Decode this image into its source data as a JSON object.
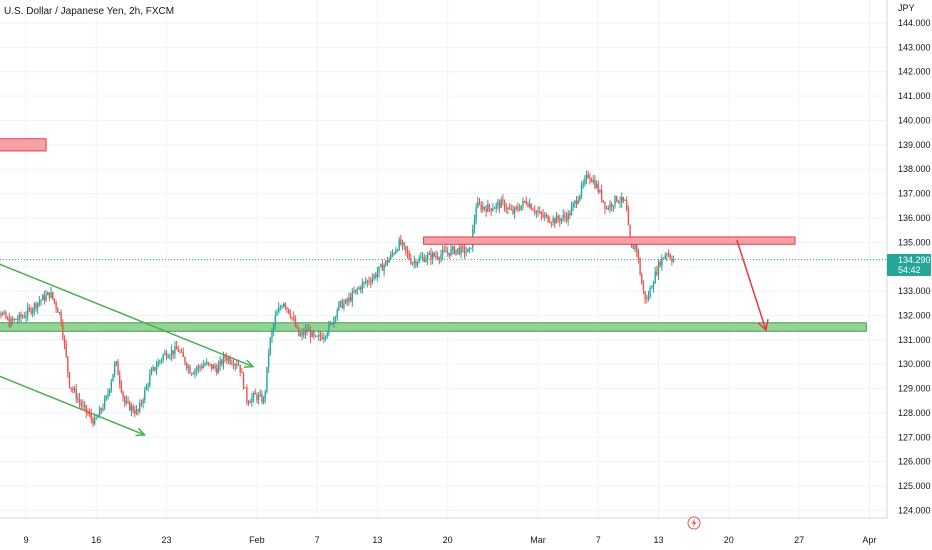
{
  "chart_data": {
    "type": "candlestick",
    "title": "U.S. Dollar / Japanese Yen, 2h, FXCM",
    "currency_label": "JPY",
    "ylim": [
      123.4,
      144.6
    ],
    "y_ticks": [
      "144.000",
      "143.000",
      "142.000",
      "141.000",
      "140.000",
      "139.000",
      "138.000",
      "137.000",
      "136.000",
      "135.000",
      "134.000",
      "133.000",
      "132.000",
      "131.000",
      "130.000",
      "129.000",
      "128.000",
      "127.000",
      "126.000",
      "125.000",
      "124.000"
    ],
    "x_ticks": [
      "9",
      "16",
      "23",
      "Feb",
      "7",
      "13",
      "20",
      "Mar",
      "7",
      "13",
      "20",
      "27",
      "Apr"
    ],
    "last_price": "134.290",
    "countdown": "54:42",
    "colors": {
      "up": "#26a69a",
      "down": "#ef5350",
      "resistance_fill": "#f7a1a6",
      "resistance_stroke": "#e03c48",
      "support_fill": "#93d396",
      "support_stroke": "#43a047",
      "trend_line": "#4caf50",
      "arrow_red": "#e53945",
      "price_label_bg": "#26a69a"
    },
    "price_path": [
      {
        "day": 5.0,
        "price": 132.7
      },
      {
        "day": 5.8,
        "price": 134.6
      },
      {
        "day": 6.5,
        "price": 132.2
      },
      {
        "day": 7.5,
        "price": 131.7
      },
      {
        "day": 9.0,
        "price": 132.0
      },
      {
        "day": 10.5,
        "price": 132.6
      },
      {
        "day": 11.6,
        "price": 132.9
      },
      {
        "day": 12.6,
        "price": 132.0
      },
      {
        "day": 13.5,
        "price": 129.2
      },
      {
        "day": 14.7,
        "price": 128.3
      },
      {
        "day": 16.0,
        "price": 127.6
      },
      {
        "day": 17.2,
        "price": 128.6
      },
      {
        "day": 18.1,
        "price": 130.1
      },
      {
        "day": 19.0,
        "price": 128.4
      },
      {
        "day": 20.3,
        "price": 128.0
      },
      {
        "day": 21.6,
        "price": 129.6
      },
      {
        "day": 22.9,
        "price": 130.4
      },
      {
        "day": 24.3,
        "price": 130.6
      },
      {
        "day": 25.6,
        "price": 129.7
      },
      {
        "day": 27.0,
        "price": 130.0
      },
      {
        "day": 28.2,
        "price": 129.8
      },
      {
        "day": 29.0,
        "price": 130.3
      },
      {
        "day": 30.4,
        "price": 130.0
      },
      {
        "day": 31.2,
        "price": 128.5
      },
      {
        "day": 32.0,
        "price": 128.7
      },
      {
        "day": 32.9,
        "price": 128.5
      },
      {
        "day": 33.4,
        "price": 130.8
      },
      {
        "day": 34.0,
        "price": 131.9
      },
      {
        "day": 34.8,
        "price": 132.6
      },
      {
        "day": 35.6,
        "price": 132.0
      },
      {
        "day": 36.4,
        "price": 131.1
      },
      {
        "day": 37.2,
        "price": 131.4
      },
      {
        "day": 38.0,
        "price": 131.0
      },
      {
        "day": 38.8,
        "price": 131.2
      },
      {
        "day": 39.5,
        "price": 131.6
      },
      {
        "day": 40.3,
        "price": 132.4
      },
      {
        "day": 41.0,
        "price": 132.5
      },
      {
        "day": 42.5,
        "price": 133.2
      },
      {
        "day": 43.8,
        "price": 133.6
      },
      {
        "day": 45.3,
        "price": 134.3
      },
      {
        "day": 46.4,
        "price": 135.0
      },
      {
        "day": 47.6,
        "price": 134.2
      },
      {
        "day": 49.1,
        "price": 134.4
      },
      {
        "day": 50.5,
        "price": 134.5
      },
      {
        "day": 52.0,
        "price": 134.7
      },
      {
        "day": 53.4,
        "price": 134.6
      },
      {
        "day": 54.0,
        "price": 136.5
      },
      {
        "day": 55.3,
        "price": 136.4
      },
      {
        "day": 56.6,
        "price": 136.6
      },
      {
        "day": 57.6,
        "price": 136.2
      },
      {
        "day": 59.0,
        "price": 136.7
      },
      {
        "day": 60.4,
        "price": 136.1
      },
      {
        "day": 61.8,
        "price": 135.9
      },
      {
        "day": 63.2,
        "price": 136.1
      },
      {
        "day": 64.3,
        "price": 137.0
      },
      {
        "day": 65.2,
        "price": 137.8
      },
      {
        "day": 66.0,
        "price": 137.3
      },
      {
        "day": 67.0,
        "price": 136.4
      },
      {
        "day": 68.0,
        "price": 136.8
      },
      {
        "day": 68.9,
        "price": 136.6
      },
      {
        "day": 69.4,
        "price": 134.6
      },
      {
        "day": 69.9,
        "price": 135.0
      },
      {
        "day": 70.6,
        "price": 133.0
      },
      {
        "day": 71.0,
        "price": 132.6
      },
      {
        "day": 71.6,
        "price": 133.4
      },
      {
        "day": 72.3,
        "price": 134.2
      },
      {
        "day": 73.0,
        "price": 134.6
      },
      {
        "day": 73.6,
        "price": 134.3
      }
    ],
    "levels": {
      "resistance_top_left": {
        "day_start": -1.0,
        "day_end": 11.0,
        "price_low": 138.75,
        "price_high": 139.25
      },
      "resistance_main": {
        "day_start": 48.6,
        "day_end": 85.6,
        "price_low": 134.92,
        "price_high": 135.22
      },
      "support_main": {
        "day_start": -1.0,
        "day_end": 92.7,
        "price_low": 131.35,
        "price_high": 131.7
      }
    },
    "trend_lines": [
      {
        "from": {
          "day": 4.0,
          "price": 134.5
        },
        "to": {
          "day": 31.6,
          "price": 129.9
        }
      },
      {
        "from": {
          "day": 4.0,
          "price": 129.9
        },
        "to": {
          "day": 20.8,
          "price": 127.1
        }
      }
    ],
    "projection_arrow": {
      "from": {
        "day": 79.8,
        "price": 135.1
      },
      "to": {
        "day": 82.7,
        "price": 131.4
      }
    }
  }
}
